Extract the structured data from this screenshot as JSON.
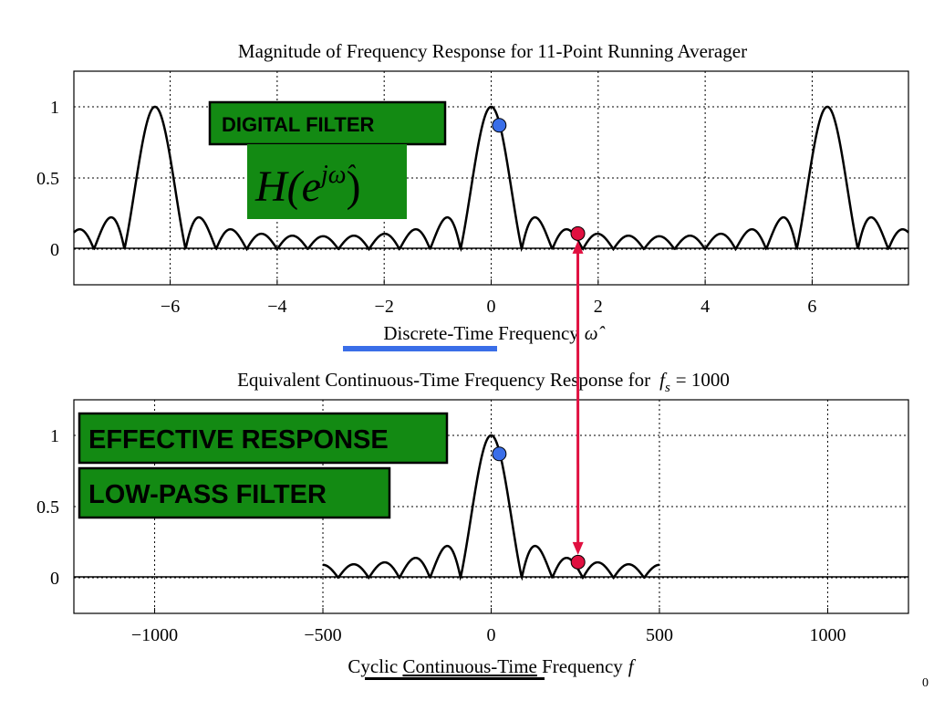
{
  "chart_data": [
    {
      "type": "line",
      "title": "Magnitude of Frequency Response for 11-Point Running Averager",
      "xlabel": "Discrete-Time Frequency",
      "xlabel_symbol": "ω̂",
      "xlim": [
        -7.8,
        7.8
      ],
      "ylim": [
        -0.25,
        1.25
      ],
      "xticks": [
        -6,
        -4,
        -2,
        0,
        2,
        4,
        6
      ],
      "yticks": [
        0,
        0.5,
        1
      ],
      "ytick_labels": [
        "0",
        "0.5",
        "1"
      ],
      "grid": true,
      "function": "|sin(11ω/2) / (11 sin(ω/2))|",
      "series": [
        {
          "points": [
            {
              "x": 0,
              "y": 1
            },
            {
              "x": 0.571,
              "y": 0
            },
            {
              "x": 0.857,
              "y": 0.22
            },
            {
              "x": 1.142,
              "y": 0
            },
            {
              "x": 1.428,
              "y": 0.15
            },
            {
              "x": 1.713,
              "y": 0
            },
            {
              "x": 2.0,
              "y": 0.11
            },
            {
              "x": 2.285,
              "y": 0
            },
            {
              "x": 3.14,
              "y": 0.09
            },
            {
              "x": 6.28,
              "y": 1
            }
          ]
        }
      ],
      "markers": [
        {
          "x": 0.15,
          "y": 0.87,
          "color": "#3a6ee8"
        },
        {
          "x": 1.62,
          "y": 0.11,
          "color": "#e01040"
        }
      ],
      "colors": {
        "blue_underline": "#3a6ee8"
      }
    },
    {
      "type": "line",
      "title_prefix": "Equivalent Continuous-Time Frequency Response for",
      "title_symbol": "f",
      "title_subscript": "s",
      "title_suffix": "= 1000",
      "xlabel_word1": "Cyclic",
      "xlabel_word2": "Continuous-Time",
      "xlabel_word3": "Frequency",
      "xlabel_symbol": "f",
      "xlim": [
        -1240,
        1240
      ],
      "ylim": [
        -0.25,
        1.25
      ],
      "xticks": [
        -1000,
        -500,
        0,
        500,
        1000
      ],
      "xtick_labels": [
        "−1000",
        "−500",
        "0",
        "500",
        "1000"
      ],
      "yticks": [
        0,
        0.5,
        1
      ],
      "ytick_labels": [
        "0",
        "0.5",
        "1"
      ],
      "grid": true,
      "function": "|sin(11·2πf/2000) / (11 sin(2πf/2000))| for |f| ≤ 500",
      "series": [
        {
          "points": [
            {
              "x": 0,
              "y": 1
            },
            {
              "x": 90.9,
              "y": 0
            },
            {
              "x": 136,
              "y": 0.22
            },
            {
              "x": 181.8,
              "y": 0
            },
            {
              "x": 227,
              "y": 0.15
            },
            {
              "x": 272.7,
              "y": 0
            },
            {
              "x": 500,
              "y": 0.09
            }
          ]
        }
      ],
      "markers": [
        {
          "x": 24,
          "y": 0.87,
          "color": "#3a6ee8"
        },
        {
          "x": 258,
          "y": 0.11,
          "color": "#e01040"
        }
      ]
    }
  ],
  "top_panel": {
    "xtick_labels": [
      "−6",
      "−4",
      "−2",
      "0",
      "2",
      "4",
      "6"
    ],
    "digital_filter_label": "DIGITAL FILTER",
    "h_symbol": "H(e",
    "h_exponent": "jω̂",
    "h_close": ")"
  },
  "bottom_panel": {
    "effective_label": "EFFECTIVE RESPONSE",
    "lowpass_label": "LOW-PASS FILTER"
  },
  "page_number_fragment": "0",
  "colors": {
    "box_green": "#138a13",
    "arrow_red": "#e01040",
    "marker_blue": "#3a6ee8",
    "marker_red": "#e01040"
  }
}
